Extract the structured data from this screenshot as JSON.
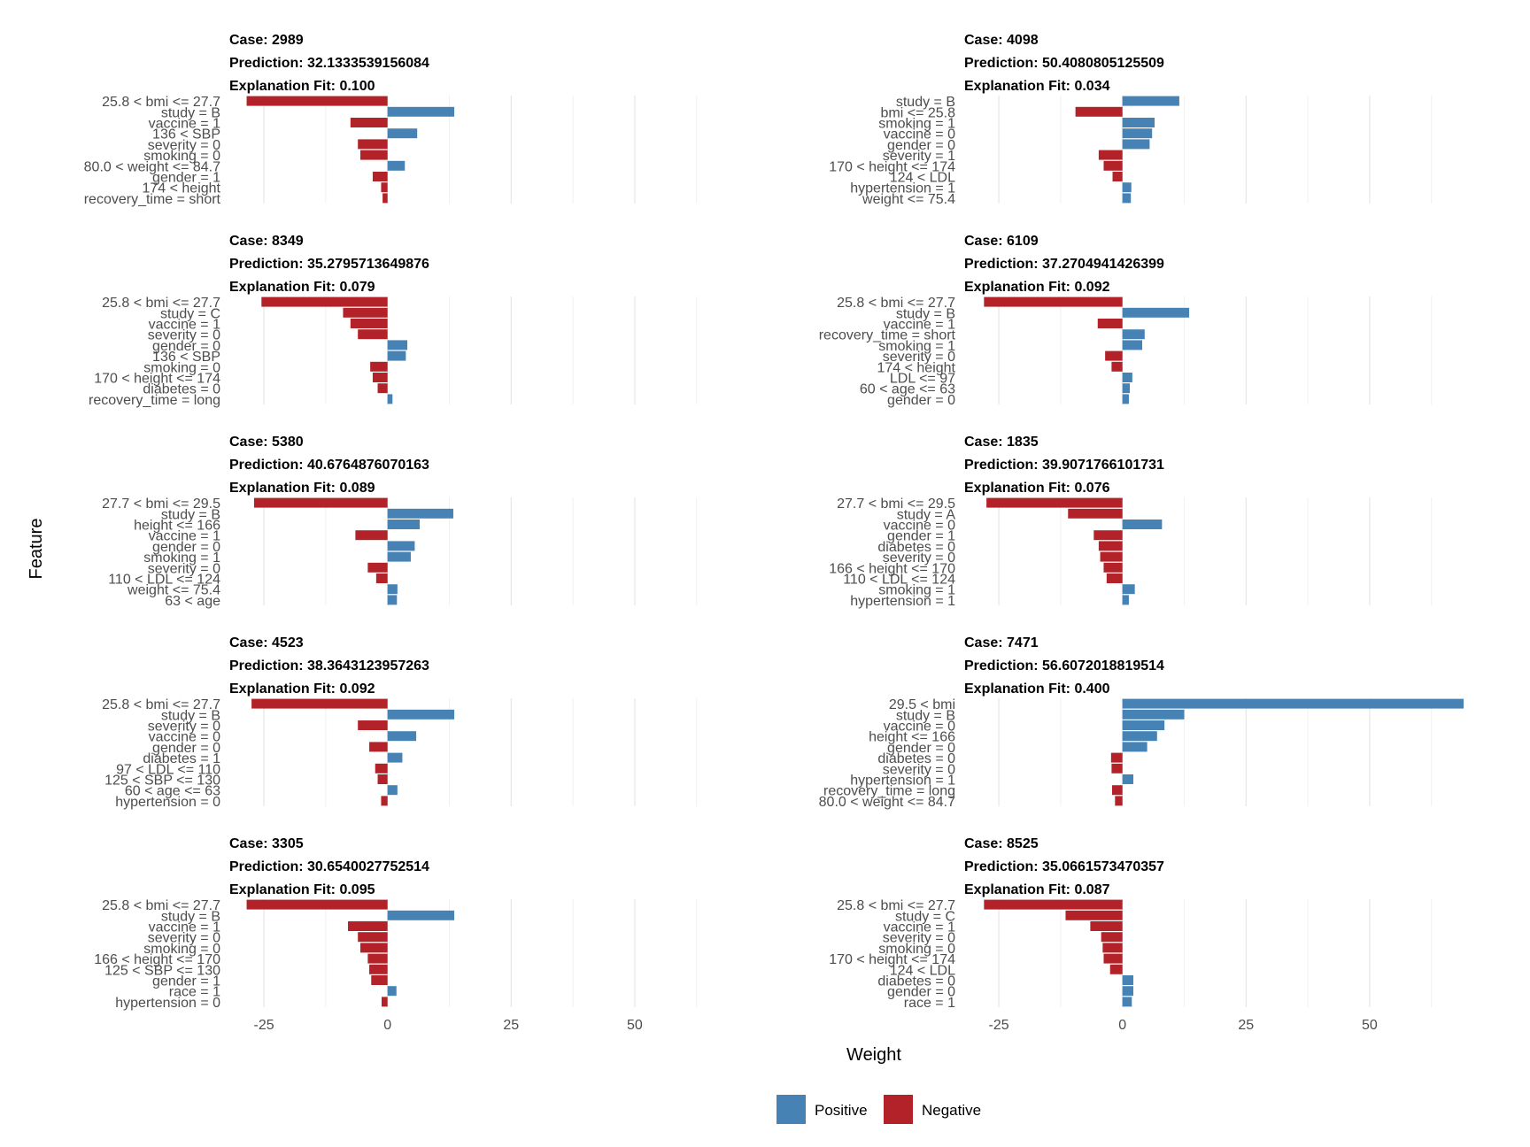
{
  "chart_data": {
    "type": "bar",
    "orientation": "horizontal",
    "xlabel": "Weight",
    "ylabel": "Feature",
    "xlim": [
      -32,
      69
    ],
    "xticks": [
      -25,
      0,
      25,
      50
    ],
    "grid": true,
    "legend": {
      "position": "bottom",
      "items": [
        {
          "label": "Positive",
          "color": "#4682B4"
        },
        {
          "label": "Negative",
          "color": "#B22228"
        }
      ]
    },
    "panels": [
      {
        "case": "Case: 2989",
        "prediction": "Prediction: 32.1333539156084",
        "fit": "Explanation Fit: 0.100",
        "features": [
          "25.8 < bmi <= 27.7",
          "study = B",
          "vaccine = 1",
          "136 < SBP",
          "severity = 0",
          "smoking = 0",
          "80.0 < weight <= 84.7",
          "gender = 1",
          "174 < height",
          "recovery_time = short"
        ],
        "weights": [
          -28.5,
          13.5,
          -7.5,
          6.0,
          -6.0,
          -5.5,
          3.5,
          -3.0,
          -1.3,
          -1.0
        ]
      },
      {
        "case": "Case: 4098",
        "prediction": "Prediction: 50.4080805125509",
        "fit": "Explanation Fit: 0.034",
        "features": [
          "study = B",
          "bmi <= 25.8",
          "smoking = 1",
          "vaccine = 0",
          "gender = 0",
          "severity = 1",
          "170 < height <= 174",
          "124 < LDL",
          "hypertension = 1",
          "weight <= 75.4"
        ],
        "weights": [
          11.5,
          -9.5,
          6.5,
          6.0,
          5.5,
          -4.8,
          -3.8,
          -2.0,
          1.8,
          1.7
        ]
      },
      {
        "case": "Case: 8349",
        "prediction": "Prediction: 35.2795713649876",
        "fit": "Explanation Fit: 0.079",
        "features": [
          "25.8 < bmi <= 27.7",
          "study = C",
          "vaccine = 1",
          "severity = 0",
          "gender = 0",
          "136 < SBP",
          "smoking = 0",
          "170 < height <= 174",
          "diabetes = 0",
          "recovery_time = long"
        ],
        "weights": [
          -25.5,
          -9.0,
          -7.5,
          -6.0,
          4.0,
          3.7,
          -3.5,
          -3.0,
          -2.0,
          1.0
        ]
      },
      {
        "case": "Case: 6109",
        "prediction": "Prediction: 37.2704941426399",
        "fit": "Explanation Fit: 0.092",
        "features": [
          "25.8 < bmi <= 27.7",
          "study = B",
          "vaccine = 1",
          "recovery_time = short",
          "smoking = 1",
          "severity = 0",
          "174 < height",
          "LDL <= 97",
          "60 < age <= 63",
          "gender = 0"
        ],
        "weights": [
          -28.0,
          13.5,
          -5.0,
          4.5,
          4.0,
          -3.5,
          -2.2,
          2.0,
          1.5,
          1.3
        ]
      },
      {
        "case": "Case: 5380",
        "prediction": "Prediction: 40.6764876070163",
        "fit": "Explanation Fit: 0.089",
        "features": [
          "27.7 < bmi <= 29.5",
          "study = B",
          "height <= 166",
          "vaccine = 1",
          "gender = 0",
          "smoking = 1",
          "severity = 0",
          "110 < LDL <= 124",
          "weight <= 75.4",
          "63 < age"
        ],
        "weights": [
          -27.0,
          13.3,
          6.5,
          -6.5,
          5.5,
          4.7,
          -4.0,
          -2.3,
          2.0,
          1.9
        ]
      },
      {
        "case": "Case: 1835",
        "prediction": "Prediction: 39.9071766101731",
        "fit": "Explanation Fit: 0.076",
        "features": [
          "27.7 < bmi <= 29.5",
          "study = A",
          "vaccine = 0",
          "gender = 1",
          "diabetes = 0",
          "severity = 0",
          "166 < height <= 170",
          "110 < LDL <= 124",
          "smoking = 1",
          "hypertension = 1"
        ],
        "weights": [
          -27.5,
          -11.0,
          8.0,
          -5.8,
          -4.8,
          -4.5,
          -3.8,
          -3.2,
          2.5,
          1.3
        ]
      },
      {
        "case": "Case: 4523",
        "prediction": "Prediction: 38.3643123957263",
        "fit": "Explanation Fit: 0.092",
        "features": [
          "25.8 < bmi <= 27.7",
          "study = B",
          "severity = 0",
          "vaccine = 0",
          "gender = 0",
          "diabetes = 1",
          "97 < LDL <= 110",
          "125 < SBP <= 130",
          "60 < age <= 63",
          "hypertension = 0"
        ],
        "weights": [
          -27.5,
          13.5,
          -6.0,
          5.8,
          -3.7,
          3.0,
          -2.5,
          -2.0,
          2.0,
          -1.3
        ]
      },
      {
        "case": "Case: 7471",
        "prediction": "Prediction: 56.6072018819514",
        "fit": "Explanation Fit: 0.400",
        "features": [
          "29.5 < bmi",
          "study = B",
          "vaccine = 0",
          "height <= 166",
          "gender = 0",
          "diabetes = 0",
          "severity = 0",
          "hypertension = 1",
          "recovery_time = long",
          "80.0 < weight <= 84.7"
        ],
        "weights": [
          69.0,
          12.5,
          8.5,
          7.0,
          5.0,
          -2.3,
          -2.2,
          2.2,
          -2.1,
          -1.5
        ]
      },
      {
        "case": "Case: 3305",
        "prediction": "Prediction: 30.6540027752514",
        "fit": "Explanation Fit: 0.095",
        "features": [
          "25.8 < bmi <= 27.7",
          "study = B",
          "vaccine = 1",
          "severity = 0",
          "smoking = 0",
          "166 < height <= 170",
          "125 < SBP <= 130",
          "gender = 1",
          "race = 1",
          "hypertension = 0"
        ],
        "weights": [
          -28.5,
          13.5,
          -8.0,
          -6.0,
          -5.5,
          -4.0,
          -3.7,
          -3.3,
          1.8,
          -1.2
        ]
      },
      {
        "case": "Case: 8525",
        "prediction": "Prediction: 35.0661573470357",
        "fit": "Explanation Fit: 0.087",
        "features": [
          "25.8 < bmi <= 27.7",
          "study = C",
          "vaccine = 1",
          "severity = 0",
          "smoking = 0",
          "170 < height <= 174",
          "124 < LDL",
          "diabetes = 0",
          "gender = 0",
          "race = 1"
        ],
        "weights": [
          -28.0,
          -11.5,
          -6.5,
          -4.3,
          -4.0,
          -3.8,
          -2.5,
          2.2,
          2.2,
          1.9
        ]
      }
    ]
  }
}
